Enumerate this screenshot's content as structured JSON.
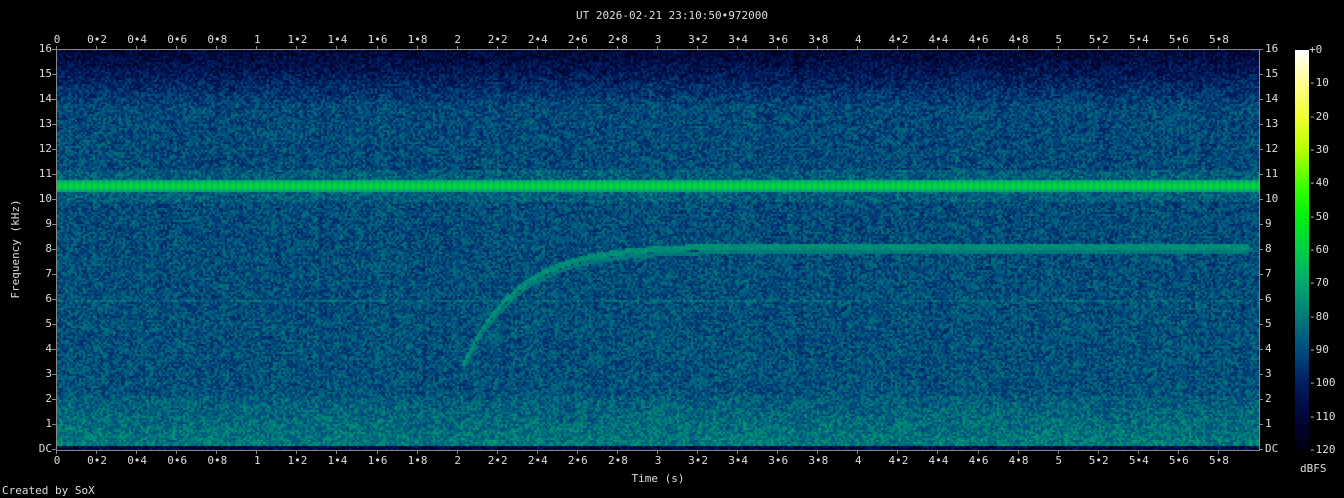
{
  "footer": "Created by SoX",
  "chart_data": {
    "type": "heatmap",
    "title": "UT 2026-02-21 23:10:50•972000",
    "xlabel": "Time (s)",
    "ylabel": "Frequency (kHz)",
    "xlim": [
      0,
      6.0
    ],
    "ylim": [
      0,
      16
    ],
    "x_ticks": [
      "0",
      "0•2",
      "0•4",
      "0•6",
      "0•8",
      "1",
      "1•2",
      "1•4",
      "1•6",
      "1•8",
      "2",
      "2•2",
      "2•4",
      "2•6",
      "2•8",
      "3",
      "3•2",
      "3•4",
      "3•6",
      "3•8",
      "4",
      "4•2",
      "4•4",
      "4•6",
      "4•8",
      "5",
      "5•2",
      "5•4",
      "5•6",
      "5•8"
    ],
    "y_ticks": [
      "DC",
      "1",
      "2",
      "3",
      "4",
      "5",
      "6",
      "7",
      "8",
      "9",
      "10",
      "11",
      "12",
      "13",
      "14",
      "15",
      "16"
    ],
    "colorbar": {
      "label": "dBFS",
      "range": [
        -120,
        0
      ],
      "ticks": [
        "+0",
        "-10",
        "-20",
        "-30",
        "-40",
        "-50",
        "-60",
        "-70",
        "-80",
        "-90",
        "-100",
        "-110",
        "-120"
      ],
      "colors": [
        {
          "db": 0,
          "color": "#ffffff"
        },
        {
          "db": -10,
          "color": "#ffff90"
        },
        {
          "db": -20,
          "color": "#f0ff30"
        },
        {
          "db": -30,
          "color": "#b8ff00"
        },
        {
          "db": -42,
          "color": "#30ff00"
        },
        {
          "db": -50,
          "color": "#00f010"
        },
        {
          "db": -60,
          "color": "#00d048"
        },
        {
          "db": -70,
          "color": "#00a870"
        },
        {
          "db": -80,
          "color": "#007a7a"
        },
        {
          "db": -90,
          "color": "#004c80"
        },
        {
          "db": -100,
          "color": "#001e62"
        },
        {
          "db": -110,
          "color": "#00063a"
        },
        {
          "db": -120,
          "color": "#000010"
        }
      ]
    },
    "features": {
      "tone_khz": 10.6,
      "tone_level_db": -55,
      "sweep": {
        "start_s": 2.02,
        "start_khz": 3.4,
        "end_s": 5.95,
        "end_khz": 8.2
      }
    }
  }
}
